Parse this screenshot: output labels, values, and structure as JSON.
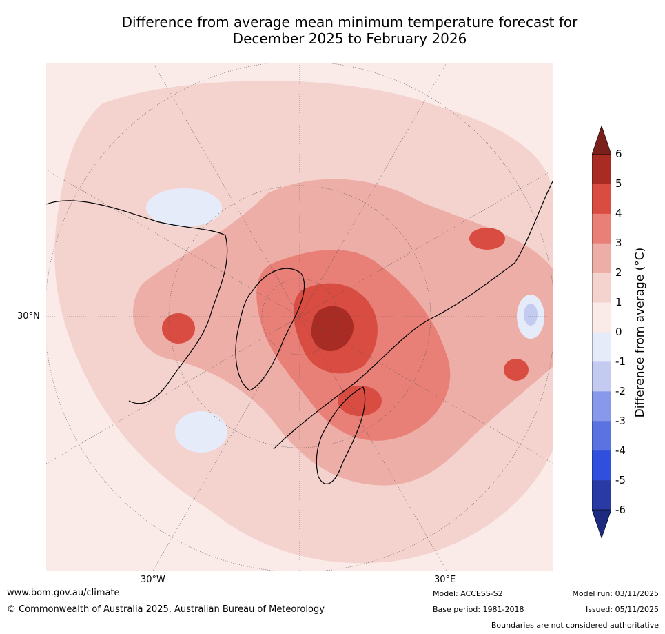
{
  "title": {
    "line1": "Difference from average mean minimum temperature forecast for",
    "line2": "December 2025 to February 2026"
  },
  "map": {
    "projection": "north-polar-stereographic",
    "lat_labels": [
      "30°N"
    ],
    "lon_labels": [
      "30°W",
      "30°E"
    ],
    "anomaly_regions": [
      {
        "name": "greenland-east-siberia-arctic-core",
        "value_range": "5 to 6+"
      },
      {
        "name": "barents-scandinavia",
        "value_range": "4 to 5"
      },
      {
        "name": "alaska-canada",
        "value_range": "4 to 5"
      },
      {
        "name": "northeast-china",
        "value_range": "4 to 6"
      },
      {
        "name": "central-asia",
        "value_range": "-2 to -1"
      },
      {
        "name": "hudson-bay",
        "value_range": "-1 to 0"
      },
      {
        "name": "north-atlantic",
        "value_range": "-1 to 0"
      }
    ]
  },
  "colorbar": {
    "label": "Difference from average (°C)",
    "ticks": [
      "6",
      "5",
      "4",
      "3",
      "2",
      "1",
      "0",
      "-1",
      "-2",
      "-3",
      "-4",
      "-5",
      "-6"
    ],
    "colors": [
      "#a82c24",
      "#d94c42",
      "#e88078",
      "#eeaea8",
      "#f4d3cf",
      "#faebe8",
      "#e6ebf9",
      "#c3cbf0",
      "#8898eb",
      "#5b73e0",
      "#2f4fdc",
      "#2a3aa5"
    ],
    "over_color": "#7a1f1a",
    "under_color": "#1c2a80"
  },
  "footer": {
    "website": "www.bom.gov.au/climate",
    "copyright": "© Commonwealth of Australia 2025, Australian Bureau of Meteorology",
    "model": "Model: ACCESS-S2",
    "base_period": "Base period: 1981-2018",
    "model_run": "Model run: 03/11/2025",
    "issued": "Issued: 05/11/2025",
    "disclaimer": "Boundaries are not considered authoritative"
  }
}
